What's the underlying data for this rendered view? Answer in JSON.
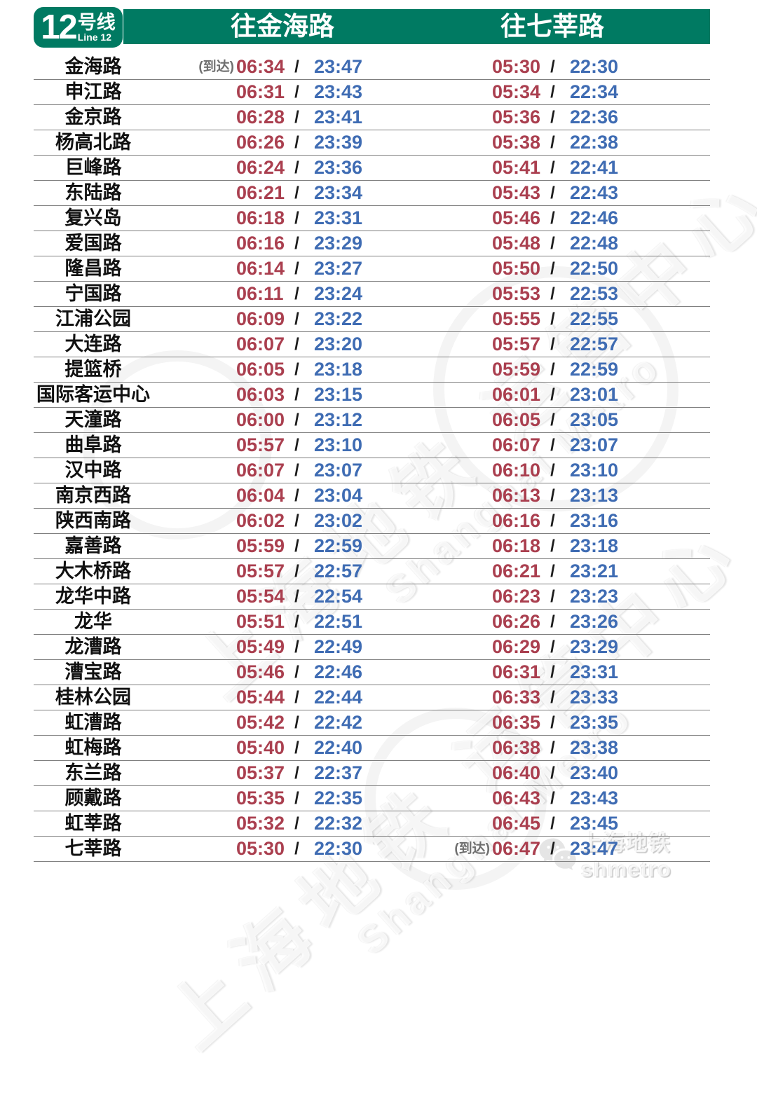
{
  "line_badge": {
    "number": "12",
    "name_cn": "号线",
    "name_en": "Line 12"
  },
  "header": {
    "direction1": "往金海路",
    "direction2": "往七莘路"
  },
  "labels": {
    "arrival": "(到达)",
    "separator": "/"
  },
  "colors": {
    "line_green": "#007a62",
    "first_train_red": "#aa3f4f",
    "last_train_blue": "#3f6cb3",
    "grid_line": "#7f7f7f"
  },
  "watermark": {
    "cn": "上海地铁 运管中心",
    "en": "Shanghai Metro"
  },
  "footer": {
    "brand": "上海地铁shmetro"
  },
  "stations": [
    {
      "name": "金海路",
      "d1_arr": true,
      "d1_first": "06:34",
      "d1_last": "23:47",
      "d2_arr": false,
      "d2_first": "05:30",
      "d2_last": "22:30"
    },
    {
      "name": "申江路",
      "d1_arr": false,
      "d1_first": "06:31",
      "d1_last": "23:43",
      "d2_arr": false,
      "d2_first": "05:34",
      "d2_last": "22:34"
    },
    {
      "name": "金京路",
      "d1_arr": false,
      "d1_first": "06:28",
      "d1_last": "23:41",
      "d2_arr": false,
      "d2_first": "05:36",
      "d2_last": "22:36"
    },
    {
      "name": "杨高北路",
      "d1_arr": false,
      "d1_first": "06:26",
      "d1_last": "23:39",
      "d2_arr": false,
      "d2_first": "05:38",
      "d2_last": "22:38"
    },
    {
      "name": "巨峰路",
      "d1_arr": false,
      "d1_first": "06:24",
      "d1_last": "23:36",
      "d2_arr": false,
      "d2_first": "05:41",
      "d2_last": "22:41"
    },
    {
      "name": "东陆路",
      "d1_arr": false,
      "d1_first": "06:21",
      "d1_last": "23:34",
      "d2_arr": false,
      "d2_first": "05:43",
      "d2_last": "22:43"
    },
    {
      "name": "复兴岛",
      "d1_arr": false,
      "d1_first": "06:18",
      "d1_last": "23:31",
      "d2_arr": false,
      "d2_first": "05:46",
      "d2_last": "22:46"
    },
    {
      "name": "爱国路",
      "d1_arr": false,
      "d1_first": "06:16",
      "d1_last": "23:29",
      "d2_arr": false,
      "d2_first": "05:48",
      "d2_last": "22:48"
    },
    {
      "name": "隆昌路",
      "d1_arr": false,
      "d1_first": "06:14",
      "d1_last": "23:27",
      "d2_arr": false,
      "d2_first": "05:50",
      "d2_last": "22:50"
    },
    {
      "name": "宁国路",
      "d1_arr": false,
      "d1_first": "06:11",
      "d1_last": "23:24",
      "d2_arr": false,
      "d2_first": "05:53",
      "d2_last": "22:53"
    },
    {
      "name": "江浦公园",
      "d1_arr": false,
      "d1_first": "06:09",
      "d1_last": "23:22",
      "d2_arr": false,
      "d2_first": "05:55",
      "d2_last": "22:55"
    },
    {
      "name": "大连路",
      "d1_arr": false,
      "d1_first": "06:07",
      "d1_last": "23:20",
      "d2_arr": false,
      "d2_first": "05:57",
      "d2_last": "22:57"
    },
    {
      "name": "提篮桥",
      "d1_arr": false,
      "d1_first": "06:05",
      "d1_last": "23:18",
      "d2_arr": false,
      "d2_first": "05:59",
      "d2_last": "22:59"
    },
    {
      "name": "国际客运中心",
      "d1_arr": false,
      "d1_first": "06:03",
      "d1_last": "23:15",
      "d2_arr": false,
      "d2_first": "06:01",
      "d2_last": "23:01"
    },
    {
      "name": "天潼路",
      "d1_arr": false,
      "d1_first": "06:00",
      "d1_last": "23:12",
      "d2_arr": false,
      "d2_first": "06:05",
      "d2_last": "23:05"
    },
    {
      "name": "曲阜路",
      "d1_arr": false,
      "d1_first": "05:57",
      "d1_last": "23:10",
      "d2_arr": false,
      "d2_first": "06:07",
      "d2_last": "23:07"
    },
    {
      "name": "汉中路",
      "d1_arr": false,
      "d1_first": "06:07",
      "d1_last": "23:07",
      "d2_arr": false,
      "d2_first": "06:10",
      "d2_last": "23:10"
    },
    {
      "name": "南京西路",
      "d1_arr": false,
      "d1_first": "06:04",
      "d1_last": "23:04",
      "d2_arr": false,
      "d2_first": "06:13",
      "d2_last": "23:13"
    },
    {
      "name": "陕西南路",
      "d1_arr": false,
      "d1_first": "06:02",
      "d1_last": "23:02",
      "d2_arr": false,
      "d2_first": "06:16",
      "d2_last": "23:16"
    },
    {
      "name": "嘉善路",
      "d1_arr": false,
      "d1_first": "05:59",
      "d1_last": "22:59",
      "d2_arr": false,
      "d2_first": "06:18",
      "d2_last": "23:18"
    },
    {
      "name": "大木桥路",
      "d1_arr": false,
      "d1_first": "05:57",
      "d1_last": "22:57",
      "d2_arr": false,
      "d2_first": "06:21",
      "d2_last": "23:21"
    },
    {
      "name": "龙华中路",
      "d1_arr": false,
      "d1_first": "05:54",
      "d1_last": "22:54",
      "d2_arr": false,
      "d2_first": "06:23",
      "d2_last": "23:23"
    },
    {
      "name": "龙华",
      "d1_arr": false,
      "d1_first": "05:51",
      "d1_last": "22:51",
      "d2_arr": false,
      "d2_first": "06:26",
      "d2_last": "23:26"
    },
    {
      "name": "龙漕路",
      "d1_arr": false,
      "d1_first": "05:49",
      "d1_last": "22:49",
      "d2_arr": false,
      "d2_first": "06:29",
      "d2_last": "23:29"
    },
    {
      "name": "漕宝路",
      "d1_arr": false,
      "d1_first": "05:46",
      "d1_last": "22:46",
      "d2_arr": false,
      "d2_first": "06:31",
      "d2_last": "23:31"
    },
    {
      "name": "桂林公园",
      "d1_arr": false,
      "d1_first": "05:44",
      "d1_last": "22:44",
      "d2_arr": false,
      "d2_first": "06:33",
      "d2_last": "23:33"
    },
    {
      "name": "虹漕路",
      "d1_arr": false,
      "d1_first": "05:42",
      "d1_last": "22:42",
      "d2_arr": false,
      "d2_first": "06:35",
      "d2_last": "23:35"
    },
    {
      "name": "虹梅路",
      "d1_arr": false,
      "d1_first": "05:40",
      "d1_last": "22:40",
      "d2_arr": false,
      "d2_first": "06:38",
      "d2_last": "23:38"
    },
    {
      "name": "东兰路",
      "d1_arr": false,
      "d1_first": "05:37",
      "d1_last": "22:37",
      "d2_arr": false,
      "d2_first": "06:40",
      "d2_last": "23:40"
    },
    {
      "name": "顾戴路",
      "d1_arr": false,
      "d1_first": "05:35",
      "d1_last": "22:35",
      "d2_arr": false,
      "d2_first": "06:43",
      "d2_last": "23:43"
    },
    {
      "name": "虹莘路",
      "d1_arr": false,
      "d1_first": "05:32",
      "d1_last": "22:32",
      "d2_arr": false,
      "d2_first": "06:45",
      "d2_last": "23:45"
    },
    {
      "name": "七莘路",
      "d1_arr": false,
      "d1_first": "05:30",
      "d1_last": "22:30",
      "d2_arr": true,
      "d2_first": "06:47",
      "d2_last": "23:47"
    }
  ]
}
